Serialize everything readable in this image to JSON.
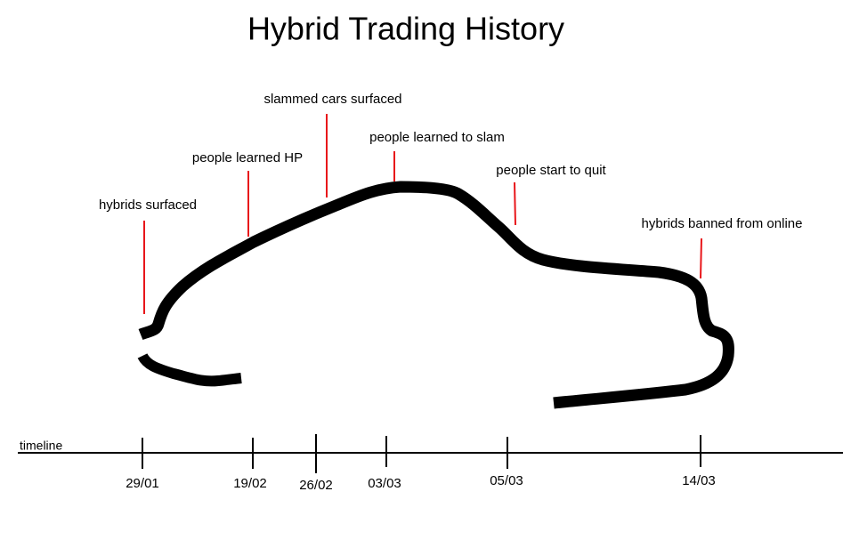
{
  "title": "Hybrid Trading History",
  "annotations": [
    {
      "text": "hybrids surfaced"
    },
    {
      "text": "people learned HP"
    },
    {
      "text": "slammed cars surfaced"
    },
    {
      "text": "people learned to slam"
    },
    {
      "text": "people start to quit"
    },
    {
      "text": "hybrids banned from online"
    }
  ],
  "timeline": {
    "label": "timeline",
    "dates": [
      "29/01",
      "19/02",
      "26/02",
      "03/03",
      "05/03",
      "14/03"
    ]
  }
}
